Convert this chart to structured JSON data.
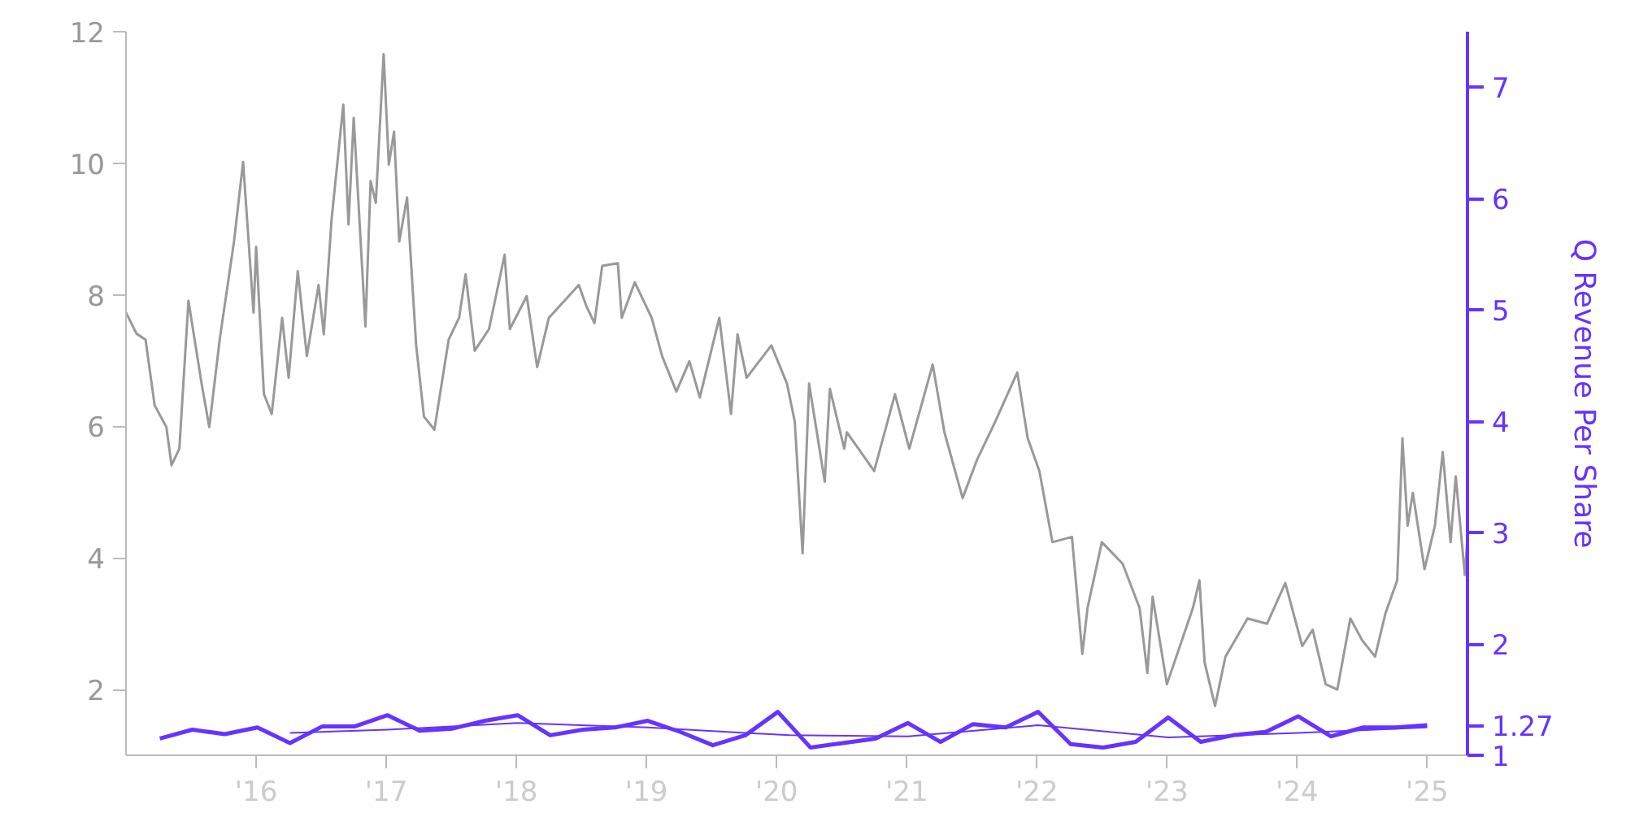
{
  "chart_data": {
    "type": "line",
    "ylabel": null,
    "y2label": "Q Revenue Per Share",
    "xlim": [
      2015.0,
      2025.31
    ],
    "ylim": [
      1,
      12
    ],
    "y2lim": [
      1,
      7.5
    ],
    "xticks": [
      {
        "value": 2016,
        "label": "'16"
      },
      {
        "value": 2017,
        "label": "'17"
      },
      {
        "value": 2018,
        "label": "'18"
      },
      {
        "value": 2019,
        "label": "'19"
      },
      {
        "value": 2020,
        "label": "'20"
      },
      {
        "value": 2021,
        "label": "'21"
      },
      {
        "value": 2022,
        "label": "'22"
      },
      {
        "value": 2023,
        "label": "'23"
      },
      {
        "value": 2024,
        "label": "'24"
      },
      {
        "value": 2025,
        "label": "'25"
      }
    ],
    "yticks": [
      2,
      4,
      6,
      8,
      10,
      12
    ],
    "y2ticks": [
      1,
      1.27,
      2,
      3,
      4,
      5,
      6,
      7
    ],
    "grid": false,
    "series": [
      {
        "color": "#999999",
        "x": [
          2015.0,
          2015.08,
          2015.15,
          2015.22,
          2015.31,
          2015.35,
          2015.41,
          2015.48,
          2015.58,
          2015.64,
          2015.72,
          2015.83,
          2015.9,
          2015.98,
          2016.0,
          2016.06,
          2016.12,
          2016.2,
          2016.25,
          2016.32,
          2016.39,
          2016.48,
          2016.52,
          2016.58,
          2016.67,
          2016.71,
          2016.75,
          2016.84,
          2016.88,
          2016.92,
          2016.98,
          2017.02,
          2017.06,
          2017.1,
          2017.16,
          2017.23,
          2017.29,
          2017.37,
          2017.48,
          2017.56,
          2017.61,
          2017.68,
          2017.79,
          2017.91,
          2017.95,
          2018.08,
          2018.16,
          2018.25,
          2018.48,
          2018.54,
          2018.6,
          2018.66,
          2018.78,
          2018.81,
          2018.91,
          2019.04,
          2019.12,
          2019.23,
          2019.33,
          2019.41,
          2019.56,
          2019.65,
          2019.7,
          2019.77,
          2019.96,
          2020.08,
          2020.14,
          2020.2,
          2020.25,
          2020.37,
          2020.41,
          2020.52,
          2020.54,
          2020.75,
          2020.91,
          2021.02,
          2021.2,
          2021.29,
          2021.43,
          2021.54,
          2021.68,
          2021.85,
          2021.93,
          2022.02,
          2022.12,
          2022.27,
          2022.35,
          2022.39,
          2022.5,
          2022.66,
          2022.79,
          2022.85,
          2022.89,
          2023.0,
          2023.2,
          2023.25,
          2023.29,
          2023.37,
          2023.45,
          2023.62,
          2023.77,
          2023.91,
          2024.04,
          2024.12,
          2024.22,
          2024.31,
          2024.41,
          2024.5,
          2024.6,
          2024.68,
          2024.77,
          2024.81,
          2024.85,
          2024.89,
          2024.98,
          2025.06,
          2025.12,
          2025.18,
          2025.22,
          2025.29,
          2025.31
        ],
        "values": [
          7.73,
          7.41,
          7.32,
          6.32,
          5.99,
          5.41,
          5.66,
          7.91,
          6.66,
          5.99,
          7.32,
          8.81,
          10.02,
          7.73,
          8.73,
          6.49,
          6.19,
          7.65,
          6.74,
          8.36,
          7.07,
          8.15,
          7.4,
          9.15,
          10.89,
          9.07,
          10.69,
          7.52,
          9.73,
          9.4,
          11.66,
          9.98,
          10.48,
          8.81,
          9.48,
          7.23,
          6.15,
          5.95,
          7.32,
          7.65,
          8.31,
          7.15,
          7.48,
          8.61,
          7.48,
          7.98,
          6.9,
          7.65,
          8.15,
          7.82,
          7.57,
          8.44,
          8.48,
          7.65,
          8.19,
          7.65,
          7.07,
          6.53,
          6.99,
          6.44,
          7.65,
          6.19,
          7.4,
          6.74,
          7.23,
          6.65,
          6.07,
          4.07,
          6.65,
          5.16,
          6.57,
          5.66,
          5.91,
          5.32,
          6.49,
          5.66,
          6.94,
          5.91,
          4.91,
          5.49,
          6.07,
          6.82,
          5.82,
          5.32,
          4.24,
          4.32,
          2.54,
          3.24,
          4.24,
          3.91,
          3.24,
          2.25,
          3.41,
          2.08,
          3.24,
          3.66,
          2.41,
          1.75,
          2.5,
          3.08,
          3.0,
          3.62,
          2.66,
          2.91,
          2.08,
          2.0,
          3.08,
          2.75,
          2.5,
          3.16,
          3.66,
          5.82,
          4.49,
          4.99,
          3.83,
          4.49,
          5.61,
          4.24,
          5.24,
          3.74,
          4.32
        ]
      },
      {
        "color": "#6633ff",
        "axis": "y2",
        "x": [
          2015.26,
          2015.51,
          2015.76,
          2016.01,
          2016.26,
          2016.51,
          2016.76,
          2017.01,
          2017.26,
          2017.51,
          2017.76,
          2018.01,
          2018.26,
          2018.51,
          2018.76,
          2019.01,
          2019.26,
          2019.51,
          2019.76,
          2020.01,
          2020.26,
          2020.51,
          2020.76,
          2021.01,
          2021.26,
          2021.51,
          2021.76,
          2022.01,
          2022.26,
          2022.51,
          2022.76,
          2023.01,
          2023.26,
          2023.51,
          2023.76,
          2024.01,
          2024.26,
          2024.51,
          2024.76,
          2025.0
        ],
        "values": [
          1.15,
          1.23,
          1.19,
          1.25,
          1.11,
          1.26,
          1.26,
          1.36,
          1.22,
          1.24,
          1.31,
          1.36,
          1.18,
          1.23,
          1.25,
          1.31,
          1.21,
          1.09,
          1.18,
          1.39,
          1.07,
          1.11,
          1.15,
          1.29,
          1.12,
          1.28,
          1.25,
          1.39,
          1.1,
          1.07,
          1.12,
          1.34,
          1.12,
          1.18,
          1.21,
          1.35,
          1.17,
          1.25,
          1.25,
          1.27
        ]
      },
      {
        "color": "#6633ff",
        "axis": "y2",
        "x": [
          2016.26,
          2017.01,
          2018.01,
          2019.01,
          2019.76,
          2020.1,
          2021.01,
          2022.01,
          2023.01,
          2024.01,
          2025.0
        ],
        "values": [
          1.2,
          1.23,
          1.29,
          1.25,
          1.2,
          1.18,
          1.17,
          1.27,
          1.16,
          1.2,
          1.25
        ]
      }
    ]
  }
}
